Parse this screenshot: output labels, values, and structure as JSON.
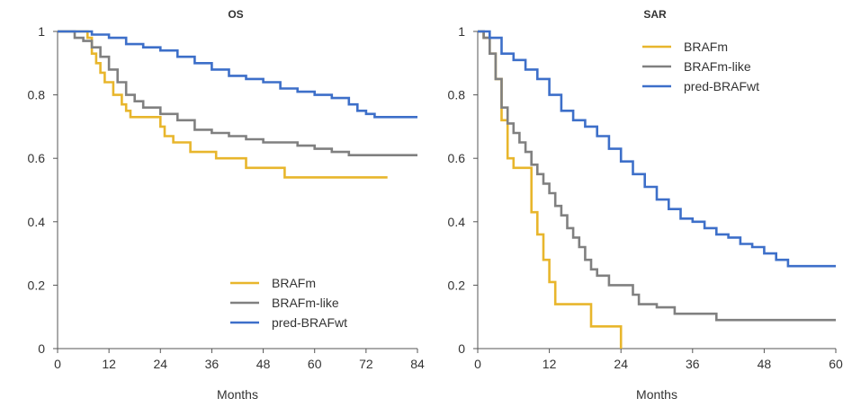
{
  "colors": {
    "BRAFm": "#e8b62c",
    "BRAFm-like": "#808080",
    "pred-BRAFwt": "#3d6fc9"
  },
  "chart_data": [
    {
      "type": "line",
      "title": "OS",
      "xlabel": "Months",
      "ylabel": "",
      "xlim": [
        0,
        84
      ],
      "ylim": [
        0,
        1
      ],
      "xticks": [
        "0",
        "12",
        "24",
        "36",
        "48",
        "60",
        "72",
        "84"
      ],
      "yticks": [
        "0",
        "0.2",
        "0.4",
        "0.6",
        "0.8",
        "1"
      ],
      "legend_position": "bottom-right",
      "series": [
        {
          "name": "BRAFm",
          "color": "#e8b62c",
          "points": [
            [
              0,
              1
            ],
            [
              7,
              0.98
            ],
            [
              8,
              0.93
            ],
            [
              9,
              0.9
            ],
            [
              10,
              0.87
            ],
            [
              11,
              0.84
            ],
            [
              13,
              0.8
            ],
            [
              15,
              0.77
            ],
            [
              16,
              0.75
            ],
            [
              17,
              0.73
            ],
            [
              24,
              0.7
            ],
            [
              25,
              0.67
            ],
            [
              27,
              0.65
            ],
            [
              31,
              0.62
            ],
            [
              37,
              0.6
            ],
            [
              44,
              0.57
            ],
            [
              52,
              0.57
            ],
            [
              53,
              0.54
            ],
            [
              77,
              0.54
            ]
          ]
        },
        {
          "name": "BRAFm-like",
          "color": "#808080",
          "points": [
            [
              0,
              1
            ],
            [
              4,
              0.98
            ],
            [
              6,
              0.97
            ],
            [
              8,
              0.95
            ],
            [
              10,
              0.92
            ],
            [
              12,
              0.88
            ],
            [
              14,
              0.84
            ],
            [
              16,
              0.8
            ],
            [
              18,
              0.78
            ],
            [
              20,
              0.76
            ],
            [
              24,
              0.74
            ],
            [
              28,
              0.72
            ],
            [
              32,
              0.69
            ],
            [
              36,
              0.68
            ],
            [
              40,
              0.67
            ],
            [
              44,
              0.66
            ],
            [
              48,
              0.65
            ],
            [
              56,
              0.64
            ],
            [
              60,
              0.63
            ],
            [
              64,
              0.62
            ],
            [
              68,
              0.61
            ],
            [
              84,
              0.61
            ]
          ]
        },
        {
          "name": "pred-BRAFwt",
          "color": "#3d6fc9",
          "points": [
            [
              0,
              1
            ],
            [
              8,
              0.99
            ],
            [
              12,
              0.98
            ],
            [
              16,
              0.96
            ],
            [
              20,
              0.95
            ],
            [
              24,
              0.94
            ],
            [
              28,
              0.92
            ],
            [
              32,
              0.9
            ],
            [
              36,
              0.88
            ],
            [
              40,
              0.86
            ],
            [
              44,
              0.85
            ],
            [
              48,
              0.84
            ],
            [
              52,
              0.82
            ],
            [
              56,
              0.81
            ],
            [
              60,
              0.8
            ],
            [
              64,
              0.79
            ],
            [
              68,
              0.77
            ],
            [
              70,
              0.75
            ],
            [
              72,
              0.74
            ],
            [
              74,
              0.73
            ],
            [
              84,
              0.73
            ]
          ]
        }
      ]
    },
    {
      "type": "line",
      "title": "SAR",
      "xlabel": "Months",
      "ylabel": "",
      "xlim": [
        0,
        60
      ],
      "ylim": [
        0,
        1
      ],
      "xticks": [
        "0",
        "12",
        "24",
        "36",
        "48",
        "60"
      ],
      "yticks": [
        "0",
        "0.2",
        "0.4",
        "0.6",
        "0.8",
        "1"
      ],
      "legend_position": "top-right",
      "series": [
        {
          "name": "BRAFm",
          "color": "#e8b62c",
          "points": [
            [
              0,
              1
            ],
            [
              1,
              0.98
            ],
            [
              2,
              0.93
            ],
            [
              3,
              0.85
            ],
            [
              4,
              0.72
            ],
            [
              5,
              0.6
            ],
            [
              6,
              0.57
            ],
            [
              8,
              0.57
            ],
            [
              9,
              0.43
            ],
            [
              10,
              0.36
            ],
            [
              11,
              0.28
            ],
            [
              12,
              0.21
            ],
            [
              13,
              0.14
            ],
            [
              18,
              0.14
            ],
            [
              19,
              0.07
            ],
            [
              24,
              0.07
            ],
            [
              24,
              0
            ]
          ]
        },
        {
          "name": "BRAFm-like",
          "color": "#808080",
          "points": [
            [
              0,
              1
            ],
            [
              1,
              0.98
            ],
            [
              2,
              0.93
            ],
            [
              3,
              0.85
            ],
            [
              4,
              0.76
            ],
            [
              5,
              0.71
            ],
            [
              6,
              0.68
            ],
            [
              7,
              0.65
            ],
            [
              8,
              0.62
            ],
            [
              9,
              0.58
            ],
            [
              10,
              0.55
            ],
            [
              11,
              0.52
            ],
            [
              12,
              0.49
            ],
            [
              13,
              0.45
            ],
            [
              14,
              0.42
            ],
            [
              15,
              0.38
            ],
            [
              16,
              0.35
            ],
            [
              17,
              0.32
            ],
            [
              18,
              0.28
            ],
            [
              19,
              0.25
            ],
            [
              20,
              0.23
            ],
            [
              22,
              0.2
            ],
            [
              26,
              0.17
            ],
            [
              27,
              0.14
            ],
            [
              30,
              0.13
            ],
            [
              33,
              0.11
            ],
            [
              40,
              0.09
            ],
            [
              60,
              0.09
            ]
          ]
        },
        {
          "name": "pred-BRAFwt",
          "color": "#3d6fc9",
          "points": [
            [
              0,
              1
            ],
            [
              2,
              0.98
            ],
            [
              4,
              0.93
            ],
            [
              6,
              0.91
            ],
            [
              8,
              0.88
            ],
            [
              10,
              0.85
            ],
            [
              12,
              0.8
            ],
            [
              14,
              0.75
            ],
            [
              16,
              0.72
            ],
            [
              18,
              0.7
            ],
            [
              20,
              0.67
            ],
            [
              22,
              0.63
            ],
            [
              24,
              0.59
            ],
            [
              26,
              0.55
            ],
            [
              28,
              0.51
            ],
            [
              30,
              0.47
            ],
            [
              32,
              0.44
            ],
            [
              34,
              0.41
            ],
            [
              36,
              0.4
            ],
            [
              38,
              0.38
            ],
            [
              40,
              0.36
            ],
            [
              42,
              0.35
            ],
            [
              44,
              0.33
            ],
            [
              46,
              0.32
            ],
            [
              48,
              0.3
            ],
            [
              50,
              0.28
            ],
            [
              52,
              0.26
            ],
            [
              60,
              0.26
            ]
          ]
        }
      ]
    }
  ]
}
